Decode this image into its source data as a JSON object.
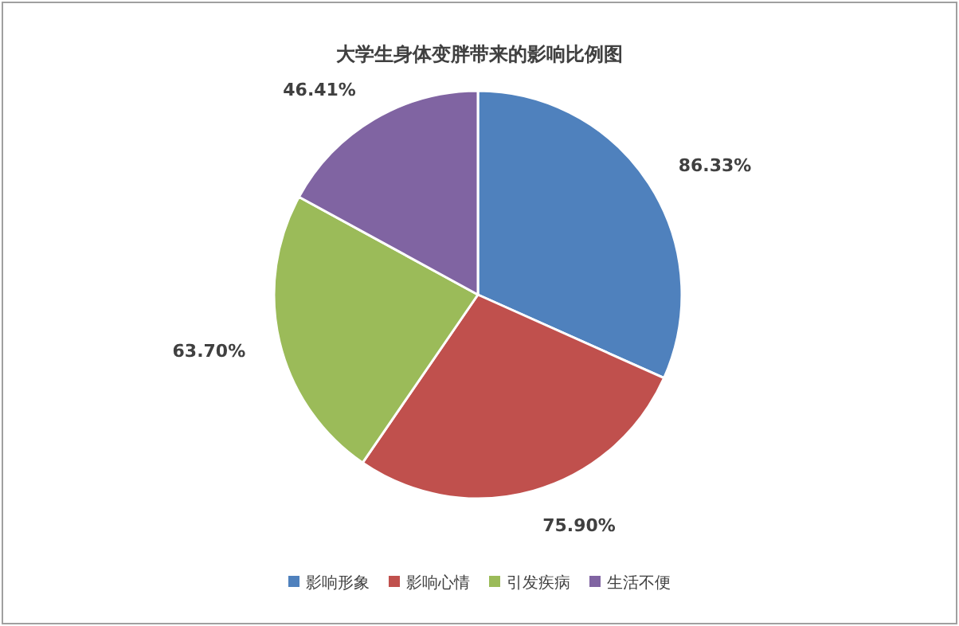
{
  "chart_data": {
    "type": "pie",
    "title": "大学生身体变胖带来的影响比例图",
    "categories": [
      "影响形象",
      "影响心情",
      "引发疾病",
      "生活不便"
    ],
    "values": [
      86.33,
      75.9,
      63.7,
      46.41
    ],
    "value_labels": [
      "86.33%",
      "75.90%",
      "63.70%",
      "46.41%"
    ],
    "colors": [
      "#4f81bd",
      "#c0504d",
      "#9bbb59",
      "#8064a2"
    ],
    "legend": "bottom"
  }
}
